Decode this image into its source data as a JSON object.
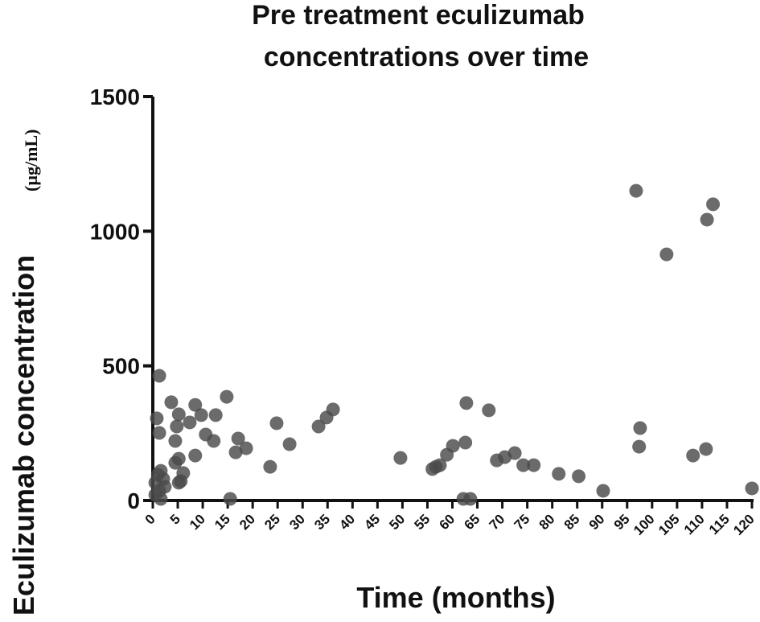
{
  "chart_data": {
    "type": "scatter",
    "title": [
      "Pre treatment eculizumab",
      "concentrations  over time"
    ],
    "xlabel": "Time (months)",
    "ylabel": "Eculizumab concentration",
    "ylabel_unit": "(µg/mL)",
    "color": "#4a4a4a",
    "xlim": [
      0,
      120
    ],
    "ylim": [
      0,
      1500
    ],
    "xticks": [
      0,
      5,
      10,
      15,
      20,
      25,
      30,
      35,
      40,
      45,
      50,
      55,
      60,
      65,
      70,
      75,
      80,
      85,
      90,
      95,
      100,
      105,
      110,
      115,
      120
    ],
    "yticks": [
      0,
      500,
      1000,
      1500
    ],
    "x": [
      1.3,
      0.8,
      1.3,
      0.5,
      1,
      1.6,
      2.1,
      1.3,
      0.5,
      1.6,
      2.4,
      3.7,
      4.8,
      5.2,
      4.5,
      5.2,
      4.5,
      5.6,
      5.2,
      6.1,
      7.4,
      8.5,
      8.5,
      9.7,
      10.6,
      12.2,
      12.6,
      14.8,
      15.5,
      16.6,
      17.1,
      18.7,
      23.5,
      24.8,
      27.4,
      33.2,
      34.8,
      36.1,
      49.6,
      56,
      56.7,
      57.5,
      58.9,
      60.1,
      62.6,
      62.8,
      62.2,
      63.6,
      67.3,
      68.9,
      70.5,
      72.5,
      74.2,
      76.3,
      81.3,
      85.3,
      90.2,
      96.8,
      97.6,
      97.4,
      102.9,
      108.2,
      110.8,
      111,
      112.2,
      120
    ],
    "y": [
      463,
      305,
      251,
      66,
      96,
      110,
      80,
      36,
      21,
      6,
      51,
      365,
      275,
      320,
      221,
      155,
      140,
      72,
      66,
      102,
      290,
      355,
      167,
      317,
      245,
      221,
      317,
      385,
      6,
      179,
      230,
      194,
      125,
      287,
      209,
      275,
      308,
      338,
      158,
      117,
      125,
      131,
      170,
      203,
      215,
      362,
      6,
      6,
      335,
      149,
      161,
      176,
      131,
      131,
      99,
      90,
      36,
      1150,
      269,
      200,
      914,
      167,
      191,
      1043,
      1100,
      45
    ]
  }
}
